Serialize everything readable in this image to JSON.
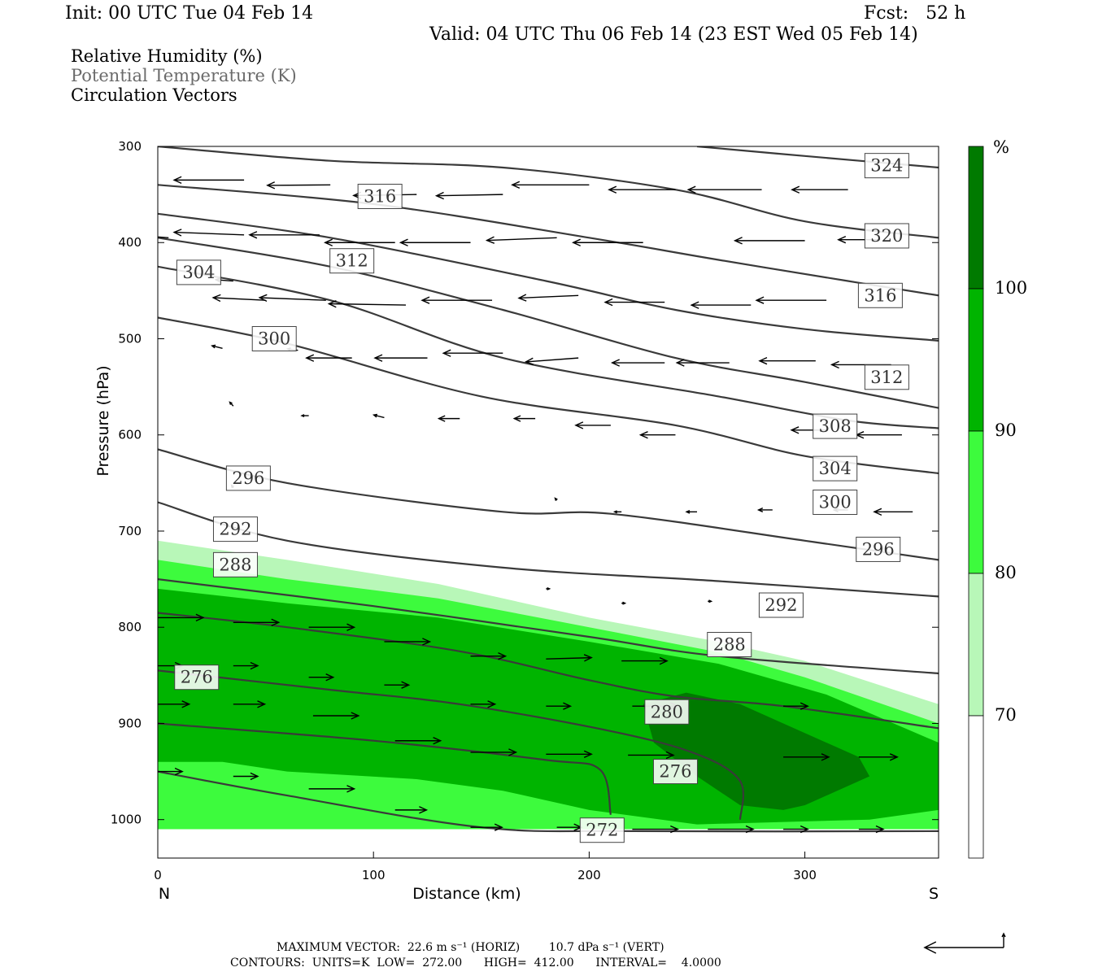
{
  "header": {
    "init": "Init: 00 UTC Tue 04 Feb 14",
    "fcst": "Fcst:   52 h",
    "valid": "Valid: 04 UTC Thu 06 Feb 14 (23 EST Wed 05 Feb 14)"
  },
  "legend": {
    "line1": "Relative Humidity (%)",
    "line2": "Potential Temperature (K)",
    "line3": "Circulation Vectors"
  },
  "footer": {
    "line1": "MAXIMUM VECTOR:  22.6 m s⁻¹ (HORIZ)        10.7 dPa s⁻¹ (VERT)",
    "line2": "CONTOURS:  UNITS=K  LOW=  272.00      HIGH=  412.00      INTERVAL=    4.0000"
  },
  "colors": {
    "rh70": "#b8f7b8",
    "rh80": "#3dfb3d",
    "rh90": "#00b400",
    "rh100": "#007a00",
    "isentrope": "#3a3a3a"
  },
  "chart_data": {
    "type": "cross-section",
    "title": "Relative Humidity (%), Potential Temperature (K), Circulation Vectors",
    "xlabel": "Distance (km)",
    "ylabel": "Pressure (hPa)",
    "xlim": [
      0,
      362
    ],
    "ylim": [
      1040,
      300
    ],
    "x_ticks": [
      "0",
      "100",
      "200",
      "300"
    ],
    "x_tick_values": [
      0,
      100,
      200,
      300
    ],
    "y_ticks": [
      "300",
      "400",
      "500",
      "600",
      "700",
      "800",
      "900",
      "1000"
    ],
    "y_tick_values": [
      300,
      400,
      500,
      600,
      700,
      800,
      900,
      1000
    ],
    "x_endpoints": {
      "left": "N",
      "right": "S"
    },
    "colorbar": {
      "unit": "%",
      "levels": [
        "70",
        "80",
        "90",
        "100"
      ],
      "level_values": [
        70,
        80,
        90,
        100
      ]
    },
    "isentropes": [
      {
        "label": "272",
        "points": [
          [
            0,
            950
          ],
          [
            60,
            975
          ],
          [
            150,
            1008
          ],
          [
            220,
            1012
          ],
          [
            362,
            1012
          ]
        ]
      },
      {
        "label": "276",
        "points": [
          [
            0,
            900
          ],
          [
            100,
            918
          ],
          [
            180,
            938
          ],
          [
            205,
            948
          ],
          [
            210,
            995
          ]
        ]
      },
      {
        "label": "276",
        "points": [
          [
            0,
            845
          ],
          [
            80,
            865
          ],
          [
            140,
            880
          ],
          [
            210,
            908
          ],
          [
            250,
            932
          ],
          [
            270,
            960
          ],
          [
            270,
            1000
          ]
        ]
      },
      {
        "label": "280",
        "points": [
          [
            0,
            785
          ],
          [
            60,
            800
          ],
          [
            140,
            825
          ],
          [
            200,
            855
          ],
          [
            240,
            872
          ],
          [
            290,
            882
          ],
          [
            362,
            905
          ]
        ]
      },
      {
        "label": "288",
        "points": [
          [
            0,
            750
          ],
          [
            100,
            778
          ],
          [
            200,
            810
          ],
          [
            260,
            830
          ],
          [
            362,
            848
          ]
        ]
      },
      {
        "label": "292",
        "points": [
          [
            0,
            670
          ],
          [
            60,
            710
          ],
          [
            160,
            738
          ],
          [
            260,
            752
          ],
          [
            362,
            768
          ]
        ]
      },
      {
        "label": "296",
        "points": [
          [
            0,
            615
          ],
          [
            60,
            650
          ],
          [
            160,
            680
          ],
          [
            210,
            682
          ],
          [
            300,
            710
          ],
          [
            362,
            730
          ]
        ]
      },
      {
        "label": "300",
        "points": [
          [
            0,
            478
          ],
          [
            60,
            505
          ],
          [
            150,
            560
          ],
          [
            240,
            590
          ],
          [
            300,
            622
          ],
          [
            362,
            640
          ]
        ]
      },
      {
        "label": "304",
        "points": [
          [
            0,
            425
          ],
          [
            80,
            460
          ],
          [
            160,
            520
          ],
          [
            260,
            560
          ],
          [
            320,
            585
          ],
          [
            362,
            593
          ]
        ]
      },
      {
        "label": "308",
        "points": [
          [
            0,
            395
          ],
          [
            80,
            425
          ],
          [
            160,
            470
          ],
          [
            240,
            520
          ],
          [
            300,
            545
          ],
          [
            362,
            572
          ]
        ]
      },
      {
        "label": "312",
        "points": [
          [
            0,
            370
          ],
          [
            80,
            395
          ],
          [
            180,
            440
          ],
          [
            240,
            470
          ],
          [
            300,
            490
          ],
          [
            362,
            502
          ]
        ]
      },
      {
        "label": "316",
        "points": [
          [
            0,
            340
          ],
          [
            100,
            360
          ],
          [
            200,
            395
          ],
          [
            260,
            418
          ],
          [
            320,
            440
          ],
          [
            362,
            455
          ]
        ]
      },
      {
        "label": "320",
        "points": [
          [
            0,
            300
          ],
          [
            80,
            315
          ],
          [
            160,
            322
          ],
          [
            240,
            345
          ],
          [
            300,
            378
          ],
          [
            362,
            395
          ]
        ]
      },
      {
        "label": "324",
        "points": [
          [
            250,
            300
          ],
          [
            300,
            310
          ],
          [
            362,
            322
          ]
        ]
      }
    ],
    "isentrope_labels": [
      {
        "text": "324",
        "x": 338,
        "y": 320
      },
      {
        "text": "316",
        "x": 103,
        "y": 352
      },
      {
        "text": "320",
        "x": 338,
        "y": 393
      },
      {
        "text": "312",
        "x": 90,
        "y": 419
      },
      {
        "text": "304",
        "x": 19,
        "y": 431
      },
      {
        "text": "316",
        "x": 335,
        "y": 455
      },
      {
        "text": "300",
        "x": 54,
        "y": 500
      },
      {
        "text": "312",
        "x": 338,
        "y": 540
      },
      {
        "text": "308",
        "x": 314,
        "y": 591
      },
      {
        "text": "296",
        "x": 42,
        "y": 645
      },
      {
        "text": "304",
        "x": 314,
        "y": 635
      },
      {
        "text": "300",
        "x": 314,
        "y": 670
      },
      {
        "text": "292",
        "x": 36,
        "y": 698
      },
      {
        "text": "296",
        "x": 334,
        "y": 719
      },
      {
        "text": "288",
        "x": 36,
        "y": 735
      },
      {
        "text": "292",
        "x": 289,
        "y": 777
      },
      {
        "text": "288",
        "x": 265,
        "y": 818
      },
      {
        "text": "276",
        "x": 18,
        "y": 852
      },
      {
        "text": "280",
        "x": 236,
        "y": 888
      },
      {
        "text": "276",
        "x": 240,
        "y": 950
      },
      {
        "text": "272",
        "x": 206,
        "y": 1011
      }
    ],
    "rh_regions": [
      {
        "level": "70",
        "points": [
          [
            0,
            710
          ],
          [
            60,
            730
          ],
          [
            130,
            755
          ],
          [
            200,
            790
          ],
          [
            260,
            815
          ],
          [
            300,
            835
          ],
          [
            362,
            880
          ],
          [
            362,
            1010
          ],
          [
            0,
            1010
          ]
        ]
      },
      {
        "level": "80",
        "points": [
          [
            0,
            730
          ],
          [
            60,
            750
          ],
          [
            130,
            770
          ],
          [
            200,
            800
          ],
          [
            260,
            826
          ],
          [
            300,
            852
          ],
          [
            362,
            900
          ],
          [
            362,
            1010
          ],
          [
            0,
            1010
          ]
        ]
      },
      {
        "level": "90",
        "points": [
          [
            0,
            760
          ],
          [
            60,
            775
          ],
          [
            130,
            790
          ],
          [
            200,
            815
          ],
          [
            260,
            838
          ],
          [
            310,
            870
          ],
          [
            362,
            920
          ],
          [
            362,
            990
          ],
          [
            330,
            1000
          ],
          [
            250,
            1005
          ],
          [
            200,
            990
          ],
          [
            160,
            970
          ],
          [
            120,
            958
          ],
          [
            60,
            950
          ],
          [
            30,
            940
          ],
          [
            0,
            940
          ]
        ]
      },
      {
        "level": "100",
        "points": [
          [
            225,
            880
          ],
          [
            245,
            868
          ],
          [
            270,
            880
          ],
          [
            295,
            905
          ],
          [
            325,
            935
          ],
          [
            330,
            955
          ],
          [
            300,
            985
          ],
          [
            290,
            990
          ],
          [
            270,
            985
          ],
          [
            250,
            955
          ],
          [
            230,
            920
          ]
        ]
      }
    ],
    "vectors": [
      {
        "x": 0,
        "p": 340,
        "u": 22.6,
        "w": 0.3
      },
      {
        "x": 40,
        "p": 335,
        "u": 20.0,
        "w": 0.0
      },
      {
        "x": 80,
        "p": 340,
        "u": 18.0,
        "w": 0.2
      },
      {
        "x": 120,
        "p": 350,
        "u": 18.0,
        "w": 0.4
      },
      {
        "x": 160,
        "p": 350,
        "u": 19.0,
        "w": 0.5
      },
      {
        "x": 200,
        "p": 340,
        "u": 22.0,
        "w": 0.0
      },
      {
        "x": 240,
        "p": 345,
        "u": 19.0,
        "w": 0.0
      },
      {
        "x": 280,
        "p": 345,
        "u": 21.0,
        "w": 0.0
      },
      {
        "x": 320,
        "p": 345,
        "u": 16.0,
        "w": 0.0
      },
      {
        "x": 5,
        "p": 395,
        "u": 20.0,
        "w": -2.0
      },
      {
        "x": 40,
        "p": 392,
        "u": 20.0,
        "w": -1.0
      },
      {
        "x": 75,
        "p": 392,
        "u": 20.0,
        "w": 0.0
      },
      {
        "x": 110,
        "p": 400,
        "u": 20.0,
        "w": 0.0
      },
      {
        "x": 145,
        "p": 400,
        "u": 20.0,
        "w": 0.0
      },
      {
        "x": 185,
        "p": 395,
        "u": 20.0,
        "w": 1.0
      },
      {
        "x": 225,
        "p": 400,
        "u": 20.0,
        "w": 0.0
      },
      {
        "x": 300,
        "p": 398,
        "u": 20.0,
        "w": 0.0
      },
      {
        "x": 335,
        "p": 397,
        "u": 12.0,
        "w": 0.0
      },
      {
        "x": 35,
        "p": 440,
        "u": 5.0,
        "w": -0.5
      },
      {
        "x": 50,
        "p": 460,
        "u": 15.0,
        "w": -1.0
      },
      {
        "x": 78,
        "p": 460,
        "u": 19.0,
        "w": -1.0
      },
      {
        "x": 115,
        "p": 465,
        "u": 22.0,
        "w": -0.5
      },
      {
        "x": 155,
        "p": 460,
        "u": 20.0,
        "w": 0.0
      },
      {
        "x": 195,
        "p": 455,
        "u": 17.0,
        "w": 1.0
      },
      {
        "x": 235,
        "p": 462,
        "u": 17.0,
        "w": 0.0
      },
      {
        "x": 275,
        "p": 465,
        "u": 17.0,
        "w": 0.0
      },
      {
        "x": 310,
        "p": 460,
        "u": 20.0,
        "w": 0.0
      },
      {
        "x": 30,
        "p": 510,
        "u": 3.0,
        "w": -1.0
      },
      {
        "x": 65,
        "p": 512,
        "u": 3.0,
        "w": -0.5
      },
      {
        "x": 90,
        "p": 520,
        "u": 13.0,
        "w": 0.0
      },
      {
        "x": 125,
        "p": 520,
        "u": 15.0,
        "w": 0.0
      },
      {
        "x": 160,
        "p": 515,
        "u": 17.0,
        "w": 0.0
      },
      {
        "x": 195,
        "p": 520,
        "u": 15.0,
        "w": 1.5
      },
      {
        "x": 235,
        "p": 525,
        "u": 15.0,
        "w": 0.0
      },
      {
        "x": 265,
        "p": 525,
        "u": 15.0,
        "w": 0.0
      },
      {
        "x": 305,
        "p": 523,
        "u": 16.0,
        "w": 0.0
      },
      {
        "x": 340,
        "p": 527,
        "u": 17.0,
        "w": 0.0
      },
      {
        "x": 35,
        "p": 570,
        "u": 1.0,
        "w": -1.5
      },
      {
        "x": 70,
        "p": 580,
        "u": 2.0,
        "w": 0.0
      },
      {
        "x": 105,
        "p": 582,
        "u": 3.0,
        "w": -1.0
      },
      {
        "x": 140,
        "p": 583,
        "u": 6.0,
        "w": 0.0
      },
      {
        "x": 175,
        "p": 583,
        "u": 6.0,
        "w": 0.0
      },
      {
        "x": 210,
        "p": 590,
        "u": 10.0,
        "w": 0.0
      },
      {
        "x": 240,
        "p": 600,
        "u": 10.0,
        "w": 0.0
      },
      {
        "x": 310,
        "p": 595,
        "u": 10.0,
        "w": 0.0
      },
      {
        "x": 345,
        "p": 600,
        "u": 13.0,
        "w": 0.0
      },
      {
        "x": 35,
        "p": 655,
        "u": 0.5,
        "w": -1.0
      },
      {
        "x": 185,
        "p": 668,
        "u": 0.5,
        "w": -0.8
      },
      {
        "x": 215,
        "p": 680,
        "u": 2.0,
        "w": 0.0
      },
      {
        "x": 250,
        "p": 680,
        "u": 3.0,
        "w": 0.0
      },
      {
        "x": 285,
        "p": 678,
        "u": 4.0,
        "w": 0.0
      },
      {
        "x": 320,
        "p": 678,
        "u": 4.0,
        "w": 0.0
      },
      {
        "x": 350,
        "p": 680,
        "u": 11.0,
        "w": 0.0
      },
      {
        "x": 180,
        "p": 760,
        "u": -1.0,
        "w": 0.0
      },
      {
        "x": 215,
        "p": 775,
        "u": -1.0,
        "w": 0.0
      },
      {
        "x": 255,
        "p": 773,
        "u": -1.0,
        "w": 0.0
      },
      {
        "x": 0,
        "p": 790,
        "u": -13.0,
        "w": 0.0
      },
      {
        "x": 35,
        "p": 795,
        "u": -13.0,
        "w": 0.0
      },
      {
        "x": 70,
        "p": 800,
        "u": -13.0,
        "w": 0.0
      },
      {
        "x": 105,
        "p": 815,
        "u": -13.0,
        "w": 0.0
      },
      {
        "x": 145,
        "p": 830,
        "u": -10.0,
        "w": 0.0
      },
      {
        "x": 180,
        "p": 833,
        "u": -13.0,
        "w": -0.5
      },
      {
        "x": 215,
        "p": 835,
        "u": -13.0,
        "w": 0.0
      },
      {
        "x": 0,
        "p": 840,
        "u": -7.0,
        "w": 0.0
      },
      {
        "x": 35,
        "p": 840,
        "u": -7.0,
        "w": 0.0
      },
      {
        "x": 70,
        "p": 852,
        "u": -7.0,
        "w": 0.0
      },
      {
        "x": 105,
        "p": 860,
        "u": -7.0,
        "w": 0.0
      },
      {
        "x": 145,
        "p": 880,
        "u": -7.0,
        "w": 0.0
      },
      {
        "x": 180,
        "p": 882,
        "u": -7.0,
        "w": 0.0
      },
      {
        "x": 220,
        "p": 882,
        "u": -13.0,
        "w": 0.0
      },
      {
        "x": 290,
        "p": 882,
        "u": -7.0,
        "w": 0.0
      },
      {
        "x": 0,
        "p": 880,
        "u": -9.0,
        "w": 0.0
      },
      {
        "x": 35,
        "p": 880,
        "u": -9.0,
        "w": 0.0
      },
      {
        "x": 72,
        "p": 892,
        "u": -13.0,
        "w": 0.0
      },
      {
        "x": 110,
        "p": 918,
        "u": -13.0,
        "w": 0.0
      },
      {
        "x": 145,
        "p": 930,
        "u": -13.0,
        "w": 0.0
      },
      {
        "x": 180,
        "p": 932,
        "u": -13.0,
        "w": 0.0
      },
      {
        "x": 218,
        "p": 933,
        "u": -13.0,
        "w": 0.0
      },
      {
        "x": 290,
        "p": 935,
        "u": -13.0,
        "w": 0.0
      },
      {
        "x": 325,
        "p": 935,
        "u": -11.0,
        "w": 0.0
      },
      {
        "x": 0,
        "p": 950,
        "u": -7.0,
        "w": 0.0
      },
      {
        "x": 35,
        "p": 955,
        "u": -7.0,
        "w": 0.0
      },
      {
        "x": 70,
        "p": 968,
        "u": -13.0,
        "w": 0.0
      },
      {
        "x": 110,
        "p": 990,
        "u": -9.0,
        "w": 0.0
      },
      {
        "x": 145,
        "p": 1008,
        "u": -9.0,
        "w": 0.0
      },
      {
        "x": 185,
        "p": 1008,
        "u": -7.0,
        "w": 0.0
      },
      {
        "x": 220,
        "p": 1010,
        "u": -13.0,
        "w": 0.0
      },
      {
        "x": 255,
        "p": 1010,
        "u": -13.0,
        "w": 0.0
      },
      {
        "x": 290,
        "p": 1010,
        "u": -7.0,
        "w": 0.0
      },
      {
        "x": 325,
        "p": 1010,
        "u": -7.0,
        "w": 0.0
      }
    ],
    "reference_vector": {
      "u": 22.6,
      "w": 10.7
    }
  }
}
